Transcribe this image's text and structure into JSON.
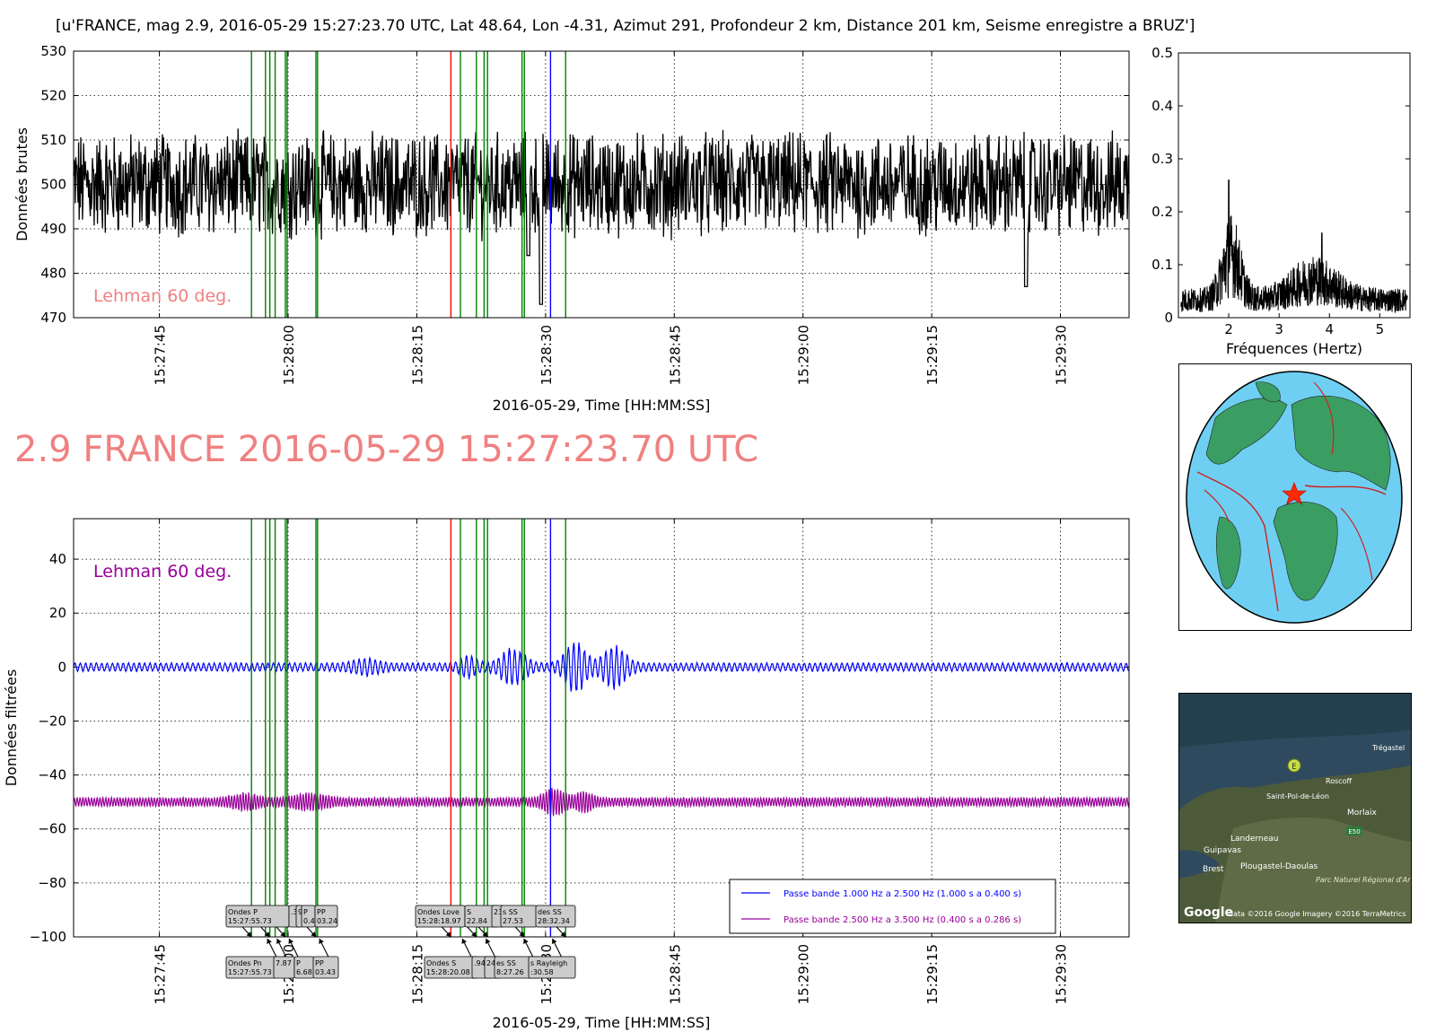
{
  "page": {
    "header_title": "[u'FRANCE, mag 2.9, 2016-05-29 15:27:23.70 UTC, Lat 48.64, Lon -4.31, Azimut 291, Profondeur 2 km, Distance   201 km, Seisme enregistre a BRUZ']",
    "event_title": "2.9 FRANCE 2016-05-29 15:27:23.70 UTC",
    "annotation_top": "Lehman 60 deg.",
    "annotation_bottom": "Lehman 60 deg.",
    "xlabel": "2016-05-29, Time [HH:MM:SS]",
    "ylabel_top": "Données brutes",
    "ylabel_bottom": "Données filtrées",
    "spectrum_xlabel": "Fréquences (Hertz)",
    "colors": {
      "raw": "#000000",
      "band1": "#0000ff",
      "band2": "#990099",
      "phase": "#008000",
      "s_phase": "#ff0000",
      "rayleigh": "#0000ff",
      "title": "#f08080"
    },
    "sat_map_labels": [
      "Trégastel",
      "Roscoff",
      "Saint-Pol-de-Léon",
      "Morlaix",
      "Landerneau",
      "Guipavas",
      "Brest",
      "Plougastel-Daoulas",
      "Parc Naturel Régional d'Armorique",
      "E50"
    ],
    "sat_map_marker": "E",
    "sat_map_attribution": "data ©2016 Google  Imagery ©2016 TerraMetrics",
    "sat_map_logo": "Google"
  },
  "chart_data": [
    {
      "id": "raw",
      "type": "line",
      "title": "",
      "ylabel": "Données brutes",
      "xlabel": "2016-05-29, Time [HH:MM:SS]",
      "ylim": [
        470,
        530
      ],
      "xlim": [
        "15:27:35.0",
        "15:29:38.0"
      ],
      "yticks": [
        470,
        480,
        490,
        500,
        510,
        520,
        530
      ],
      "xticks": [
        "15:27:45",
        "15:28:00",
        "15:28:15",
        "15:28:30",
        "15:28:45",
        "15:29:00",
        "15:29:15",
        "15:29:30"
      ],
      "grid": true,
      "series": [
        {
          "values_summary": "noisy signal around 500 (range ~487–515), spikes: 15:28:29 to 473, 15:29:26 to 477"
        }
      ]
    },
    {
      "id": "spectrum",
      "type": "line",
      "title": "",
      "xlabel": "Fréquences (Hertz)",
      "xlim": [
        1.0,
        5.6
      ],
      "ylim": [
        0.0,
        0.5
      ],
      "xticks": [
        2,
        3,
        4,
        5
      ],
      "yticks": [
        0.0,
        0.1,
        0.2,
        0.3,
        0.4,
        0.5
      ],
      "series": [
        {
          "values_summary": "noise floor ~0.03–0.06, peak 0.26 at 2.0 Hz, secondary ~0.16 near 3.8 Hz"
        }
      ]
    },
    {
      "id": "filtered",
      "type": "line",
      "title": "",
      "ylabel": "Données filtrées",
      "xlabel": "2016-05-29, Time [HH:MM:SS]",
      "ylim": [
        -100,
        55
      ],
      "xlim": [
        "15:27:35.0",
        "15:29:38.0"
      ],
      "yticks": [
        -100,
        -80,
        -60,
        -40,
        -20,
        0,
        20,
        40
      ],
      "xticks": [
        "15:27:45",
        "15:28:00",
        "15:28:15",
        "15:28:30",
        "15:28:45",
        "15:29:00",
        "15:29:15",
        "15:29:30"
      ],
      "grid": true,
      "legend_position": "lower-right",
      "series": [
        {
          "name": "Passe bande 1.000 Hz a 2.500 Hz (1.000 s a 0.400 s)",
          "color": "#0000ff",
          "baseline": 0,
          "max_amplitude": 10
        },
        {
          "name": "Passe bande 2.500 Hz a 3.500 Hz (0.400 s a 0.286 s)",
          "color": "#990099",
          "baseline": -50,
          "max_amplitude": 7
        }
      ]
    }
  ],
  "phases": [
    {
      "time": "15:27:55.73",
      "color": "green"
    },
    {
      "time": "15:27:57.36",
      "color": "green"
    },
    {
      "time": "15:27:57.87",
      "color": "green"
    },
    {
      "time": "15:27:58.49",
      "color": "green"
    },
    {
      "time": "15:27:59.68",
      "color": "green"
    },
    {
      "time": "15:27:59.89",
      "color": "green"
    },
    {
      "time": "15:28:03.24",
      "color": "green"
    },
    {
      "time": "15:28:03.43",
      "color": "green"
    },
    {
      "time": "15:28:18.97",
      "color": "red"
    },
    {
      "time": "15:28:20.08",
      "color": "green"
    },
    {
      "time": "15:28:21.94",
      "color": "green"
    },
    {
      "time": "15:28:22.84",
      "color": "green"
    },
    {
      "time": "15:28:23.24",
      "color": "green"
    },
    {
      "time": "15:28:27.26",
      "color": "green"
    },
    {
      "time": "15:28:27.53",
      "color": "green"
    },
    {
      "time": "15:28:30.58",
      "color": "blue"
    },
    {
      "time": "15:28:32.34",
      "color": "green"
    }
  ],
  "phase_labels_top": [
    {
      "name": "Ondes P",
      "time": "15:27:55.73",
      "box": "Ondes P\n15:27:55.73"
    },
    {
      "name": "",
      "time": "",
      "box": ".36"
    },
    {
      "name": "",
      "time": "",
      "box": "9"
    },
    {
      "name": "",
      "time": "",
      "box": "P\n0.49"
    },
    {
      "name": "PP",
      "time": "",
      "box": "PP\n03.24"
    },
    {
      "name": "Ondes Love",
      "time": "15:28:18.97",
      "box": "Ondes Love\n15:28:18.97"
    },
    {
      "name": "S",
      "time": "",
      "box": "S\n22.84"
    },
    {
      "name": "",
      "time": "",
      "box": "23"
    },
    {
      "name": "s SS",
      "time": "",
      "box": "s SS\n27.53"
    },
    {
      "name": "des SS",
      "time": "",
      "box": "des SS\n28:32.34"
    }
  ],
  "phase_labels_bottom": [
    {
      "name": "Ondes Pn",
      "time": "15:27:55.73",
      "box": "Ondes Pn\n15:27:55.73"
    },
    {
      "name": "",
      "time": "",
      "box": "7.87"
    },
    {
      "name": "P",
      "time": "",
      "box": "P\n6.68"
    },
    {
      "name": "PP",
      "time": "",
      "box": "PP\n03.43"
    },
    {
      "name": "Ondes S",
      "time": "15:28:20.08",
      "box": "Ondes S\n15:28:20.08"
    },
    {
      "name": "",
      "time": "",
      "box": ".94"
    },
    {
      "name": "",
      "time": "",
      "box": "24"
    },
    {
      "name": "es SS",
      "time": "",
      "box": "es SS\n8:27.26"
    },
    {
      "name": "s Rayleigh",
      "time": "",
      "box": "s Rayleigh\n:30.58"
    }
  ]
}
